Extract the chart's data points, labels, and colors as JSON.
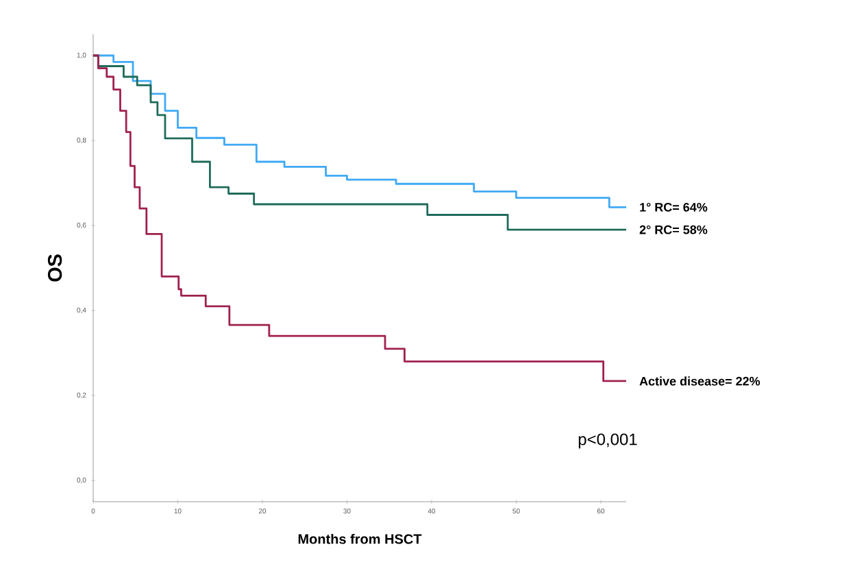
{
  "chart_data": {
    "type": "step",
    "xlabel": "Months from HSCT",
    "ylabel": "OS",
    "xlim": [
      0,
      63
    ],
    "ylim": [
      -0.05,
      1.05
    ],
    "xticks": [
      0,
      10,
      20,
      30,
      40,
      50,
      60
    ],
    "yticks": [
      {
        "value": 0,
        "label": "0,0"
      },
      {
        "value": 0.2,
        "label": "0,2"
      },
      {
        "value": 0.4,
        "label": "0,4"
      },
      {
        "value": 0.6,
        "label": "0,6"
      },
      {
        "value": 0.8,
        "label": "0,8"
      },
      {
        "value": 1,
        "label": "1,0"
      }
    ],
    "grid": false,
    "annotations": [
      "p<0,001"
    ],
    "series": [
      {
        "name": "1° RC= 64%",
        "color": "#3fa9f5",
        "x": [
          0,
          2.4,
          4.7,
          6.8,
          8.5,
          10,
          12.2,
          15.5,
          19.3,
          22.6,
          27.5,
          30,
          35.8,
          45,
          50,
          61,
          63
        ],
        "values": [
          1.0,
          0.985,
          0.94,
          0.91,
          0.87,
          0.83,
          0.806,
          0.79,
          0.75,
          0.738,
          0.717,
          0.708,
          0.698,
          0.68,
          0.665,
          0.643,
          0.643
        ]
      },
      {
        "name": "2° RC= 58%",
        "color": "#1f6b5a",
        "x": [
          0,
          0.6,
          3.6,
          5.2,
          6.8,
          7.6,
          8.5,
          11.7,
          13.8,
          16,
          19,
          39.5,
          49,
          63
        ],
        "values": [
          1.0,
          0.975,
          0.95,
          0.93,
          0.89,
          0.86,
          0.805,
          0.75,
          0.69,
          0.675,
          0.65,
          0.625,
          0.59,
          0.59
        ]
      },
      {
        "name": "Active disease= 22%",
        "color": "#a0204f",
        "x": [
          0,
          0.6,
          1.6,
          2.4,
          3.2,
          3.9,
          4.4,
          4.9,
          5.5,
          6.3,
          8.1,
          10.1,
          10.4,
          13.3,
          16.1,
          20.8,
          34.5,
          36.8,
          60.3,
          63
        ],
        "values": [
          1.0,
          0.97,
          0.95,
          0.92,
          0.87,
          0.82,
          0.74,
          0.69,
          0.64,
          0.58,
          0.48,
          0.45,
          0.435,
          0.41,
          0.366,
          0.34,
          0.31,
          0.28,
          0.234,
          0.234
        ]
      }
    ]
  }
}
